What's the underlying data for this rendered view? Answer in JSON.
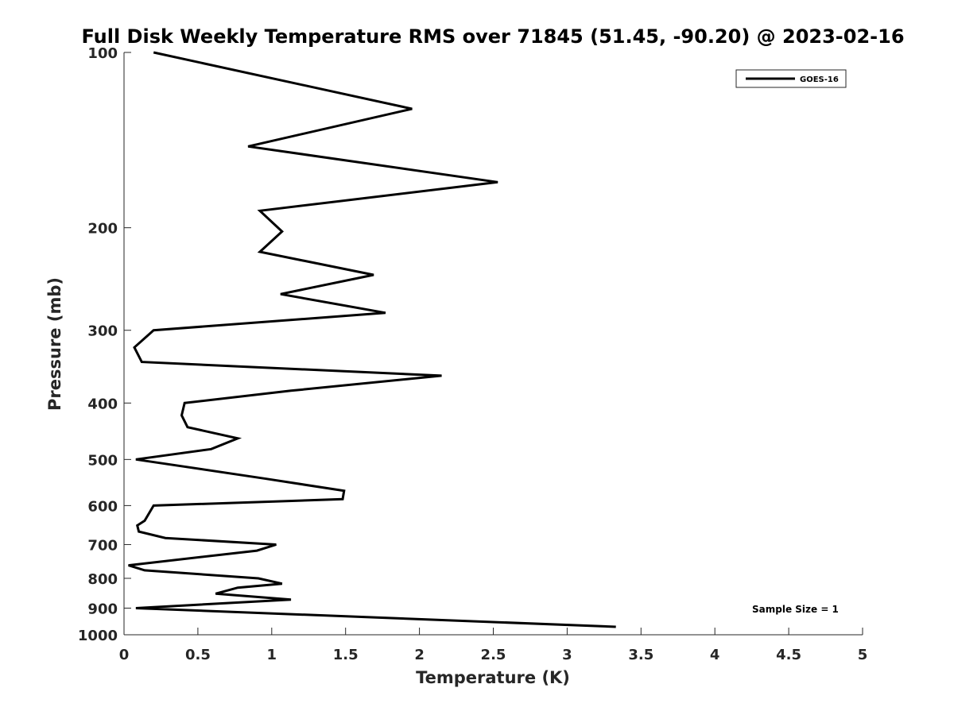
{
  "chart_data": {
    "type": "line",
    "title": "Full Disk Weekly Temperature RMS over 71845 (51.45, -90.20) @ 2023-02-16",
    "xlabel": "Temperature (K)",
    "ylabel": "Pressure (mb)",
    "xlim": [
      0,
      5
    ],
    "ylim": [
      100,
      1000
    ],
    "y_scale": "log",
    "y_reversed": true,
    "x_ticks": [
      "0",
      "0.5",
      "1",
      "1.5",
      "2",
      "2.5",
      "3",
      "3.5",
      "4",
      "4.5",
      "5"
    ],
    "y_ticks": [
      "100",
      "200",
      "300",
      "400",
      "500",
      "600",
      "700",
      "800",
      "900",
      "1000"
    ],
    "grid": false,
    "legend_position": "top-right",
    "annotation": "Sample Size = 1",
    "series": [
      {
        "name": "GOES-16",
        "color": "#000000",
        "points": [
          {
            "x": 0.2,
            "y": 100
          },
          {
            "x": 1.95,
            "y": 125
          },
          {
            "x": 0.84,
            "y": 145
          },
          {
            "x": 2.53,
            "y": 167
          },
          {
            "x": 0.92,
            "y": 187
          },
          {
            "x": 1.07,
            "y": 203
          },
          {
            "x": 0.92,
            "y": 220
          },
          {
            "x": 1.69,
            "y": 241
          },
          {
            "x": 1.06,
            "y": 260
          },
          {
            "x": 1.77,
            "y": 280
          },
          {
            "x": 0.2,
            "y": 300
          },
          {
            "x": 0.07,
            "y": 321
          },
          {
            "x": 0.12,
            "y": 340
          },
          {
            "x": 2.15,
            "y": 359
          },
          {
            "x": 1.13,
            "y": 381
          },
          {
            "x": 0.41,
            "y": 400
          },
          {
            "x": 0.39,
            "y": 420
          },
          {
            "x": 0.43,
            "y": 440
          },
          {
            "x": 0.77,
            "y": 460
          },
          {
            "x": 0.59,
            "y": 480
          },
          {
            "x": 0.08,
            "y": 500
          },
          {
            "x": 0.95,
            "y": 539
          },
          {
            "x": 1.49,
            "y": 566
          },
          {
            "x": 1.48,
            "y": 585
          },
          {
            "x": 0.2,
            "y": 600
          },
          {
            "x": 0.14,
            "y": 637
          },
          {
            "x": 0.09,
            "y": 649
          },
          {
            "x": 0.1,
            "y": 665
          },
          {
            "x": 0.28,
            "y": 682
          },
          {
            "x": 1.03,
            "y": 700
          },
          {
            "x": 0.9,
            "y": 717
          },
          {
            "x": 0.03,
            "y": 760
          },
          {
            "x": 0.14,
            "y": 775
          },
          {
            "x": 0.91,
            "y": 800
          },
          {
            "x": 1.07,
            "y": 817
          },
          {
            "x": 0.77,
            "y": 830
          },
          {
            "x": 0.62,
            "y": 850
          },
          {
            "x": 1.13,
            "y": 870
          },
          {
            "x": 0.08,
            "y": 900
          },
          {
            "x": 3.33,
            "y": 969
          }
        ]
      }
    ]
  }
}
